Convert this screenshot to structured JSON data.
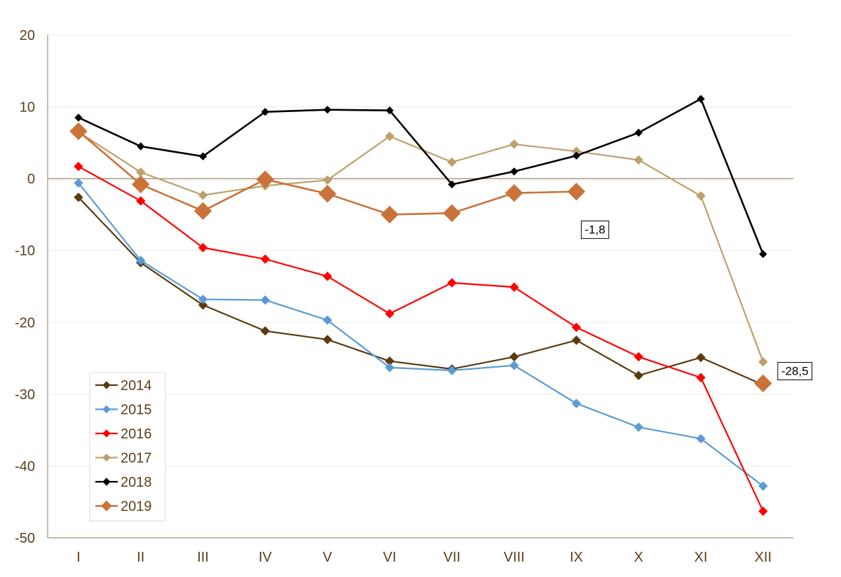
{
  "chart_data": {
    "type": "line",
    "title": "",
    "xlabel": "",
    "ylabel": "",
    "ylim": [
      -50,
      20
    ],
    "yticks": [
      20,
      10,
      0,
      -10,
      -20,
      -30,
      -40,
      -50
    ],
    "categories": [
      "I",
      "II",
      "III",
      "IV",
      "V",
      "VI",
      "VII",
      "VIII",
      "IX",
      "X",
      "XI",
      "XII"
    ],
    "series": [
      {
        "name": "2014",
        "color": "#5c3a0f",
        "marker": "small",
        "values": [
          -2.6,
          -11.7,
          -17.6,
          -21.2,
          -22.4,
          -25.4,
          -26.5,
          -24.8,
          -22.5,
          -27.4,
          -24.9,
          -28.7
        ]
      },
      {
        "name": "2015",
        "color": "#5b9bd5",
        "marker": "small",
        "values": [
          -0.6,
          -11.4,
          -16.8,
          -16.9,
          -19.7,
          -26.3,
          -26.7,
          -26.0,
          -31.3,
          -34.6,
          -36.2,
          -42.8
        ]
      },
      {
        "name": "2016",
        "color": "#ff0000",
        "marker": "small",
        "values": [
          1.7,
          -3.1,
          -9.6,
          -11.2,
          -13.6,
          -18.8,
          -14.5,
          -15.1,
          -20.7,
          -24.8,
          -27.7,
          -46.3
        ]
      },
      {
        "name": "2017",
        "color": "#bf9f6a",
        "marker": "small",
        "values": [
          6.5,
          0.9,
          -2.3,
          -1.0,
          -0.2,
          5.9,
          2.3,
          4.8,
          3.8,
          2.6,
          -2.4,
          -25.5
        ]
      },
      {
        "name": "2018",
        "color": "#000000",
        "marker": "small",
        "values": [
          8.5,
          4.5,
          3.1,
          9.3,
          9.6,
          9.5,
          -0.8,
          1.0,
          3.2,
          6.4,
          11.1,
          -10.5
        ]
      },
      {
        "name": "2019",
        "color": "#c9733a",
        "marker": "large",
        "values": [
          6.6,
          -0.8,
          -4.5,
          -0.1,
          -2.1,
          -5.0,
          -4.8,
          -2.0,
          -1.8,
          null,
          null,
          -28.5
        ]
      }
    ],
    "legend": {
      "position": "bottom-left",
      "entries": [
        "2014",
        "2015",
        "2016",
        "2017",
        "2018",
        "2019"
      ]
    },
    "annotations": [
      {
        "text": "-1,8",
        "series": "2019",
        "category": "IX"
      },
      {
        "text": "-28,5",
        "series": "2019",
        "category": "XII"
      }
    ],
    "zero_line_color": "#9c8566",
    "axis_color": "#8c7a5a",
    "grid_color": "#f0ece6"
  }
}
